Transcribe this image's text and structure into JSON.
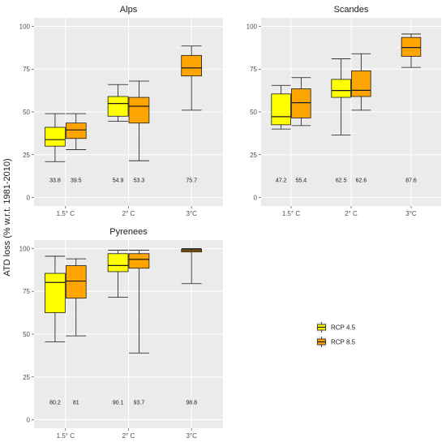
{
  "y_axis_title": "ATD loss (% w.r.t. 1981-2010)",
  "legend": {
    "entries": [
      {
        "label": "RCP 4.5",
        "color": "#ffff00"
      },
      {
        "label": "RCP 8.5",
        "color": "#ffa500"
      }
    ]
  },
  "chart_data": [
    {
      "type": "box",
      "title": "Alps",
      "categories": [
        "1.5° C",
        "2° C",
        "3°C"
      ],
      "ylim": [
        0,
        100
      ],
      "yticks": [
        0,
        25,
        50,
        75,
        100
      ],
      "grid": true,
      "series": [
        {
          "name": "RCP 4.5",
          "color": "#ffff00",
          "boxes": [
            {
              "category": "1.5° C",
              "min": 21,
              "q1": 30,
              "median": 33.8,
              "q3": 41,
              "max": 49,
              "label": "33.8"
            },
            {
              "category": "2° C",
              "min": 44.5,
              "q1": 47.5,
              "median": 54.9,
              "q3": 59,
              "max": 66,
              "label": "54.9"
            },
            null
          ]
        },
        {
          "name": "RCP 8.5",
          "color": "#ffa500",
          "boxes": [
            {
              "category": "1.5° C",
              "min": 28,
              "q1": 34.5,
              "median": 39.5,
              "q3": 43.5,
              "max": 49,
              "label": "39.5"
            },
            {
              "category": "2° C",
              "min": 21.5,
              "q1": 43.5,
              "median": 53.3,
              "q3": 58.5,
              "max": 68,
              "label": "53.3"
            },
            {
              "category": "3°C",
              "min": 51,
              "q1": 71,
              "median": 75.7,
              "q3": 83,
              "max": 88.5,
              "label": "75.7"
            }
          ]
        }
      ]
    },
    {
      "type": "box",
      "title": "Scandes",
      "categories": [
        "1.5° C",
        "2° C",
        "3°C"
      ],
      "ylim": [
        0,
        100
      ],
      "yticks": [
        0,
        25,
        50,
        75,
        100
      ],
      "grid": true,
      "series": [
        {
          "name": "RCP 4.5",
          "color": "#ffff00",
          "boxes": [
            {
              "category": "1.5° C",
              "min": 40,
              "q1": 42.5,
              "median": 47.2,
              "q3": 60.5,
              "max": 65.5,
              "label": "47.2"
            },
            {
              "category": "2° C",
              "min": 36.5,
              "q1": 58.5,
              "median": 62.5,
              "q3": 69,
              "max": 81,
              "label": "62.5"
            },
            null
          ]
        },
        {
          "name": "RCP 8.5",
          "color": "#ffa500",
          "boxes": [
            {
              "category": "1.5° C",
              "min": 42,
              "q1": 46.5,
              "median": 55.4,
              "q3": 63.5,
              "max": 70,
              "label": "55.4"
            },
            {
              "category": "2° C",
              "min": 51,
              "q1": 59,
              "median": 62.6,
              "q3": 74,
              "max": 84,
              "label": "62.6"
            },
            {
              "category": "3°C",
              "min": 76,
              "q1": 82.5,
              "median": 87.6,
              "q3": 93.5,
              "max": 95.5,
              "label": "87.6"
            }
          ]
        }
      ]
    },
    {
      "type": "box",
      "title": "Pyrenees",
      "categories": [
        "1.5° C",
        "2° C",
        "3°C"
      ],
      "ylim": [
        0,
        100
      ],
      "yticks": [
        0,
        25,
        50,
        75,
        100
      ],
      "grid": true,
      "series": [
        {
          "name": "RCP 4.5",
          "color": "#ffff00",
          "boxes": [
            {
              "category": "1.5° C",
              "min": 45.5,
              "q1": 62.5,
              "median": 80.2,
              "q3": 85.5,
              "max": 95.5,
              "label": "80.2"
            },
            {
              "category": "2° C",
              "min": 71.5,
              "q1": 86.5,
              "median": 90.1,
              "q3": 97,
              "max": 99,
              "label": "90.1"
            },
            null
          ]
        },
        {
          "name": "RCP 8.5",
          "color": "#ffa500",
          "boxes": [
            {
              "category": "1.5° C",
              "min": 49,
              "q1": 71,
              "median": 81,
              "q3": 90,
              "max": 94,
              "label": "81"
            },
            {
              "category": "2° C",
              "min": 39,
              "q1": 88.5,
              "median": 93.7,
              "q3": 97,
              "max": 99,
              "label": "93.7"
            },
            {
              "category": "3°C",
              "min": 79.5,
              "q1": 98,
              "median": 98.8,
              "q3": 99.5,
              "max": 100,
              "label": "98.8"
            }
          ]
        }
      ]
    }
  ]
}
